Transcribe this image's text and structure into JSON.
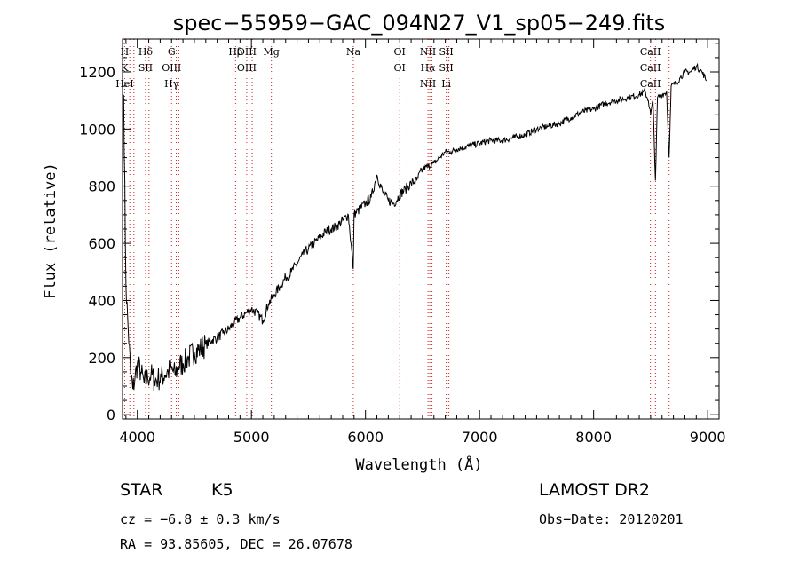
{
  "chart_data": {
    "type": "line",
    "title": "spec−55959−GAC_094N27_V1_sp05−249.fits",
    "xlabel": "Wavelength (Å)",
    "ylabel": "Flux (relative)",
    "xlim": [
      3870,
      9100
    ],
    "ylim": [
      -15,
      1315
    ],
    "xticks": [
      4000,
      5000,
      6000,
      7000,
      8000,
      9000
    ],
    "yticks": [
      0,
      200,
      400,
      600,
      800,
      1000,
      1200
    ],
    "grid": false,
    "legend": "none",
    "series": [
      {
        "x": [
          3880,
          3900,
          3920,
          3940,
          3960,
          3980,
          4000,
          4030,
          4060,
          4090,
          4120,
          4150,
          4180,
          4210,
          4240,
          4270,
          4300,
          4330,
          4360,
          4400,
          4450,
          4500,
          4550,
          4600,
          4650,
          4700,
          4750,
          4800,
          4850,
          4900,
          4950,
          5000,
          5050,
          5100,
          5150,
          5200,
          5250,
          5300,
          5350,
          5400,
          5450,
          5500,
          5550,
          5600,
          5650,
          5700,
          5750,
          5800,
          5850,
          5893,
          5900,
          5950,
          6000,
          6050,
          6100,
          6150,
          6200,
          6250,
          6300,
          6350,
          6400,
          6450,
          6500,
          6550,
          6600,
          6650,
          6700,
          6750,
          6800,
          6900,
          7000,
          7100,
          7200,
          7300,
          7400,
          7500,
          7600,
          7700,
          7800,
          7900,
          8000,
          8100,
          8200,
          8300,
          8400,
          8450,
          8480,
          8500,
          8520,
          8542,
          8560,
          8600,
          8640,
          8662,
          8680,
          8720,
          8760,
          8800,
          8850,
          8900,
          8950,
          8990
        ],
        "values": [
          1120,
          450,
          300,
          150,
          90,
          130,
          180,
          150,
          110,
          130,
          140,
          120,
          125,
          130,
          140,
          150,
          160,
          140,
          170,
          180,
          200,
          220,
          230,
          245,
          260,
          270,
          285,
          300,
          320,
          340,
          355,
          370,
          355,
          330,
          390,
          420,
          450,
          480,
          500,
          530,
          560,
          580,
          600,
          620,
          640,
          650,
          660,
          680,
          700,
          510,
          700,
          720,
          740,
          760,
          840,
          780,
          750,
          740,
          770,
          790,
          810,
          820,
          860,
          870,
          880,
          900,
          920,
          920,
          930,
          940,
          950,
          960,
          960,
          970,
          980,
          1000,
          1010,
          1020,
          1040,
          1060,
          1070,
          1090,
          1100,
          1110,
          1120,
          1130,
          1100,
          1050,
          1100,
          820,
          1110,
          1120,
          1130,
          900,
          1150,
          1160,
          1180,
          1200,
          1200,
          1220,
          1200,
          1170
        ]
      }
    ],
    "lines": [
      {
        "x": 3889,
        "labels": [
          "H",
          "K",
          "HeI"
        ]
      },
      {
        "x": 3934,
        "labels": []
      },
      {
        "x": 3970,
        "labels": []
      },
      {
        "x": 4072,
        "labels": [
          "Hδ",
          "SII"
        ]
      },
      {
        "x": 4102,
        "labels": []
      },
      {
        "x": 4300,
        "labels": [
          "G",
          "OIII",
          "Hγ"
        ]
      },
      {
        "x": 4341,
        "labels": []
      },
      {
        "x": 4363,
        "labels": []
      },
      {
        "x": 4861,
        "labels": [
          "Hβ"
        ]
      },
      {
        "x": 4959,
        "labels": [
          "OIII",
          "OIII"
        ]
      },
      {
        "x": 5007,
        "labels": []
      },
      {
        "x": 5175,
        "labels": [
          "Mg"
        ]
      },
      {
        "x": 5893,
        "labels": [
          "Na"
        ]
      },
      {
        "x": 6300,
        "labels": [
          "OI",
          "OI"
        ]
      },
      {
        "x": 6364,
        "labels": []
      },
      {
        "x": 6548,
        "labels": [
          "NII",
          "Hα",
          "NII"
        ]
      },
      {
        "x": 6563,
        "labels": []
      },
      {
        "x": 6583,
        "labels": []
      },
      {
        "x": 6708,
        "labels": [
          "SII",
          "SII",
          "Li"
        ]
      },
      {
        "x": 6716,
        "labels": []
      },
      {
        "x": 6731,
        "labels": []
      },
      {
        "x": 8498,
        "labels": [
          "CaII",
          "CaII",
          "CaII"
        ]
      },
      {
        "x": 8542,
        "labels": []
      },
      {
        "x": 8662,
        "labels": []
      }
    ]
  },
  "info": {
    "class_label": "STAR",
    "subclass": "K5",
    "survey": "LAMOST DR2",
    "redshift": "cz = −6.8 ± 0.3 km/s",
    "obs_date": "Obs−Date: 20120201",
    "coords": "RA =  93.85605, DEC =  26.07678"
  }
}
